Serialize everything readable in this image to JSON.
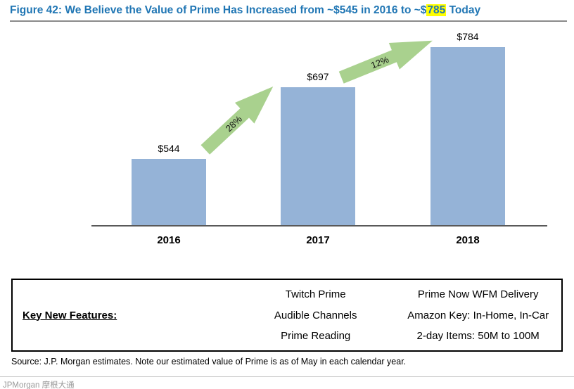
{
  "figure": {
    "title_prefix": "Figure 42: We Believe the Value of Prime Has Increased from ~$545 in 2016 to ~$",
    "title_highlight": "785",
    "title_suffix": " Today"
  },
  "chart_data": {
    "type": "bar",
    "title": "We Believe the Value of Prime Has Increased from ~$545 in 2016 to ~$785 Today",
    "categories": [
      "2016",
      "2017",
      "2018"
    ],
    "values": [
      544,
      697,
      784
    ],
    "value_labels": [
      "$544",
      "$697",
      "$784"
    ],
    "growth_annotations": [
      "28%",
      "12%"
    ],
    "xlabel": "",
    "ylabel": "",
    "ylim": [
      400,
      800
    ],
    "grid": false,
    "legend": false,
    "bar_color": "#95B3D7",
    "arrow_color": "#A9D18E"
  },
  "features_table": {
    "header": "Key New Features:",
    "columns": [
      [
        "Twitch Prime",
        "Audible Channels",
        "Prime Reading"
      ],
      [
        "Prime Now WFM Delivery",
        "Amazon Key: In-Home, In-Car",
        "2-day Items: 50M to 100M"
      ]
    ]
  },
  "source_note": "Source: J.P. Morgan estimates. Note our estimated value of Prime is as of May in each calendar year.",
  "watermark": "JPMorgan 摩根大通",
  "colors": {
    "title_blue": "#2076B4",
    "highlight_bg": "#FFFF00",
    "bar": "#95B3D7",
    "arrow_green": "#A9D18E"
  }
}
